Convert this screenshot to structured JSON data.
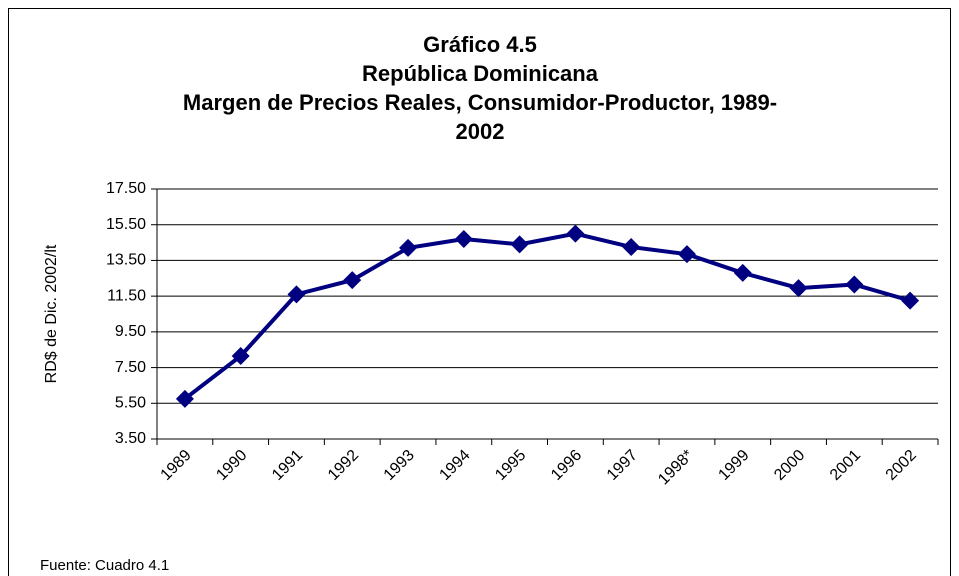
{
  "chart_data": {
    "type": "line",
    "title": [
      "Gráfico 4.5",
      "República Dominicana",
      "Margen de Precios Reales, Consumidor-Productor, 1989-",
      "2002"
    ],
    "y_label": "RD$ de Dic. 2002/lt",
    "source": "Fuente: Cuadro 4.1",
    "categories": [
      "1989",
      "1990",
      "1991",
      "1992",
      "1993",
      "1994",
      "1995",
      "1996",
      "1997",
      "1998*",
      "1999",
      "2000",
      "2001",
      "2002"
    ],
    "values": [
      5.75,
      8.15,
      11.6,
      12.4,
      14.2,
      14.7,
      14.4,
      15.0,
      14.25,
      13.85,
      12.8,
      11.95,
      12.15,
      11.25
    ],
    "color": "#000080",
    "ylim": [
      3.5,
      17.5
    ],
    "yticks": [
      {
        "value": 3.5,
        "label": "3.50"
      },
      {
        "value": 5.5,
        "label": "5.50"
      },
      {
        "value": 7.5,
        "label": "7.50"
      },
      {
        "value": 9.5,
        "label": "9.50"
      },
      {
        "value": 11.5,
        "label": "11.50"
      },
      {
        "value": 13.5,
        "label": "13.50"
      },
      {
        "value": 15.5,
        "label": "15.50"
      },
      {
        "value": 17.5,
        "label": "17.50"
      }
    ],
    "grid": true
  }
}
